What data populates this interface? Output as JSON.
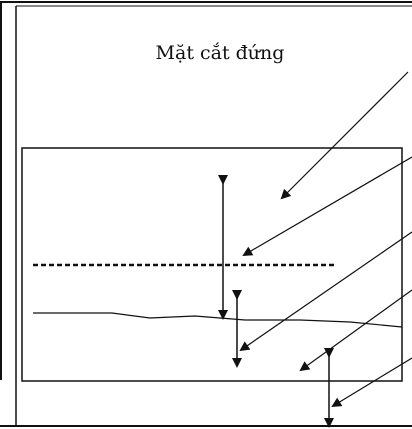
{
  "diagram": {
    "title": "Mặt cắt đứng",
    "colors": {
      "line": "#111111",
      "border": "#1a1a1a",
      "background": "#ffffff"
    }
  }
}
